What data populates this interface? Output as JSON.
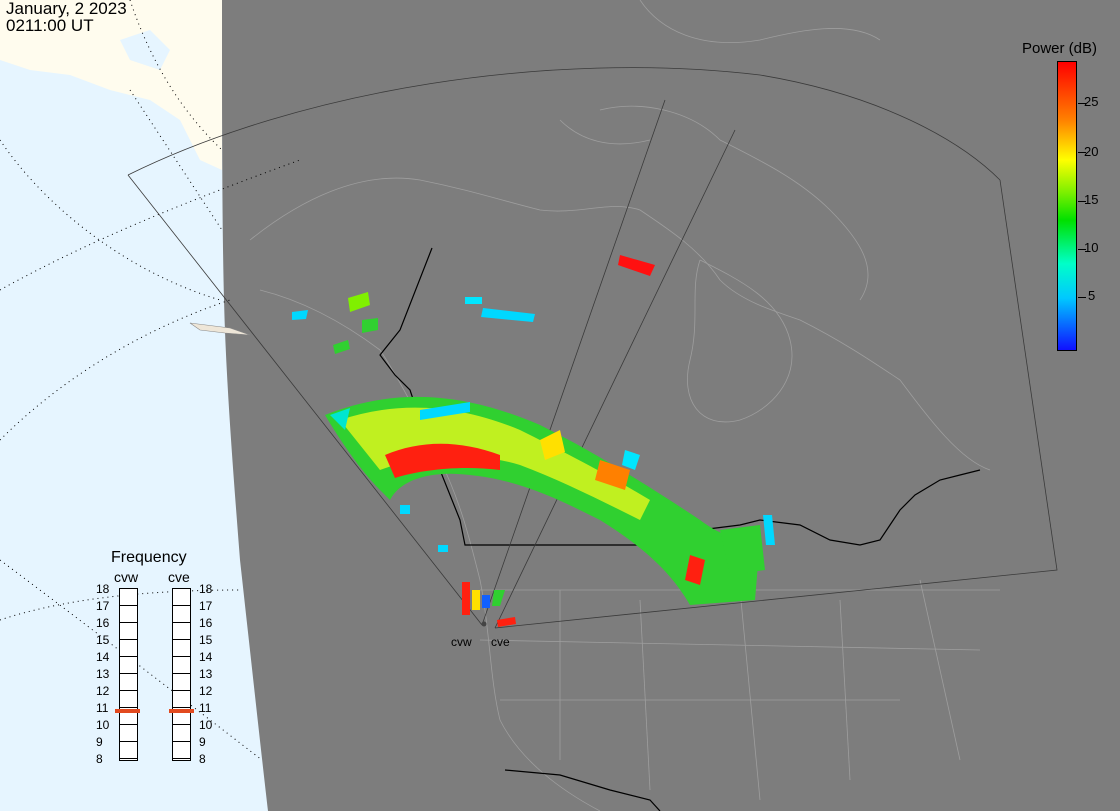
{
  "header": {
    "date": "January, 2 2023",
    "time": "0211:00 UT"
  },
  "colorbar": {
    "title": "Power (dB)",
    "ticks": [
      "25",
      "20",
      "15",
      "10",
      "5"
    ],
    "colors": [
      "#1010ff",
      "#00c8ff",
      "#00ffc8",
      "#00e000",
      "#80f000",
      "#ffff00",
      "#ff8000",
      "#ff0000"
    ]
  },
  "frequency": {
    "title": "Frequency",
    "radars": [
      "cvw",
      "cve"
    ],
    "labels": [
      "18",
      "17",
      "16",
      "15",
      "14",
      "13",
      "12",
      "11",
      "10",
      "9",
      "8"
    ],
    "selected_mhz": {
      "cvw": 10.8,
      "cve": 10.8
    },
    "marker_color": "#e24a1f"
  },
  "sites": {
    "cvw": "cvw",
    "cve": "cve"
  },
  "map": {
    "ocean": "#e6f5ff",
    "land_lit": "#fffcee",
    "night": "#7d7d7d",
    "border_color": "#000000"
  }
}
